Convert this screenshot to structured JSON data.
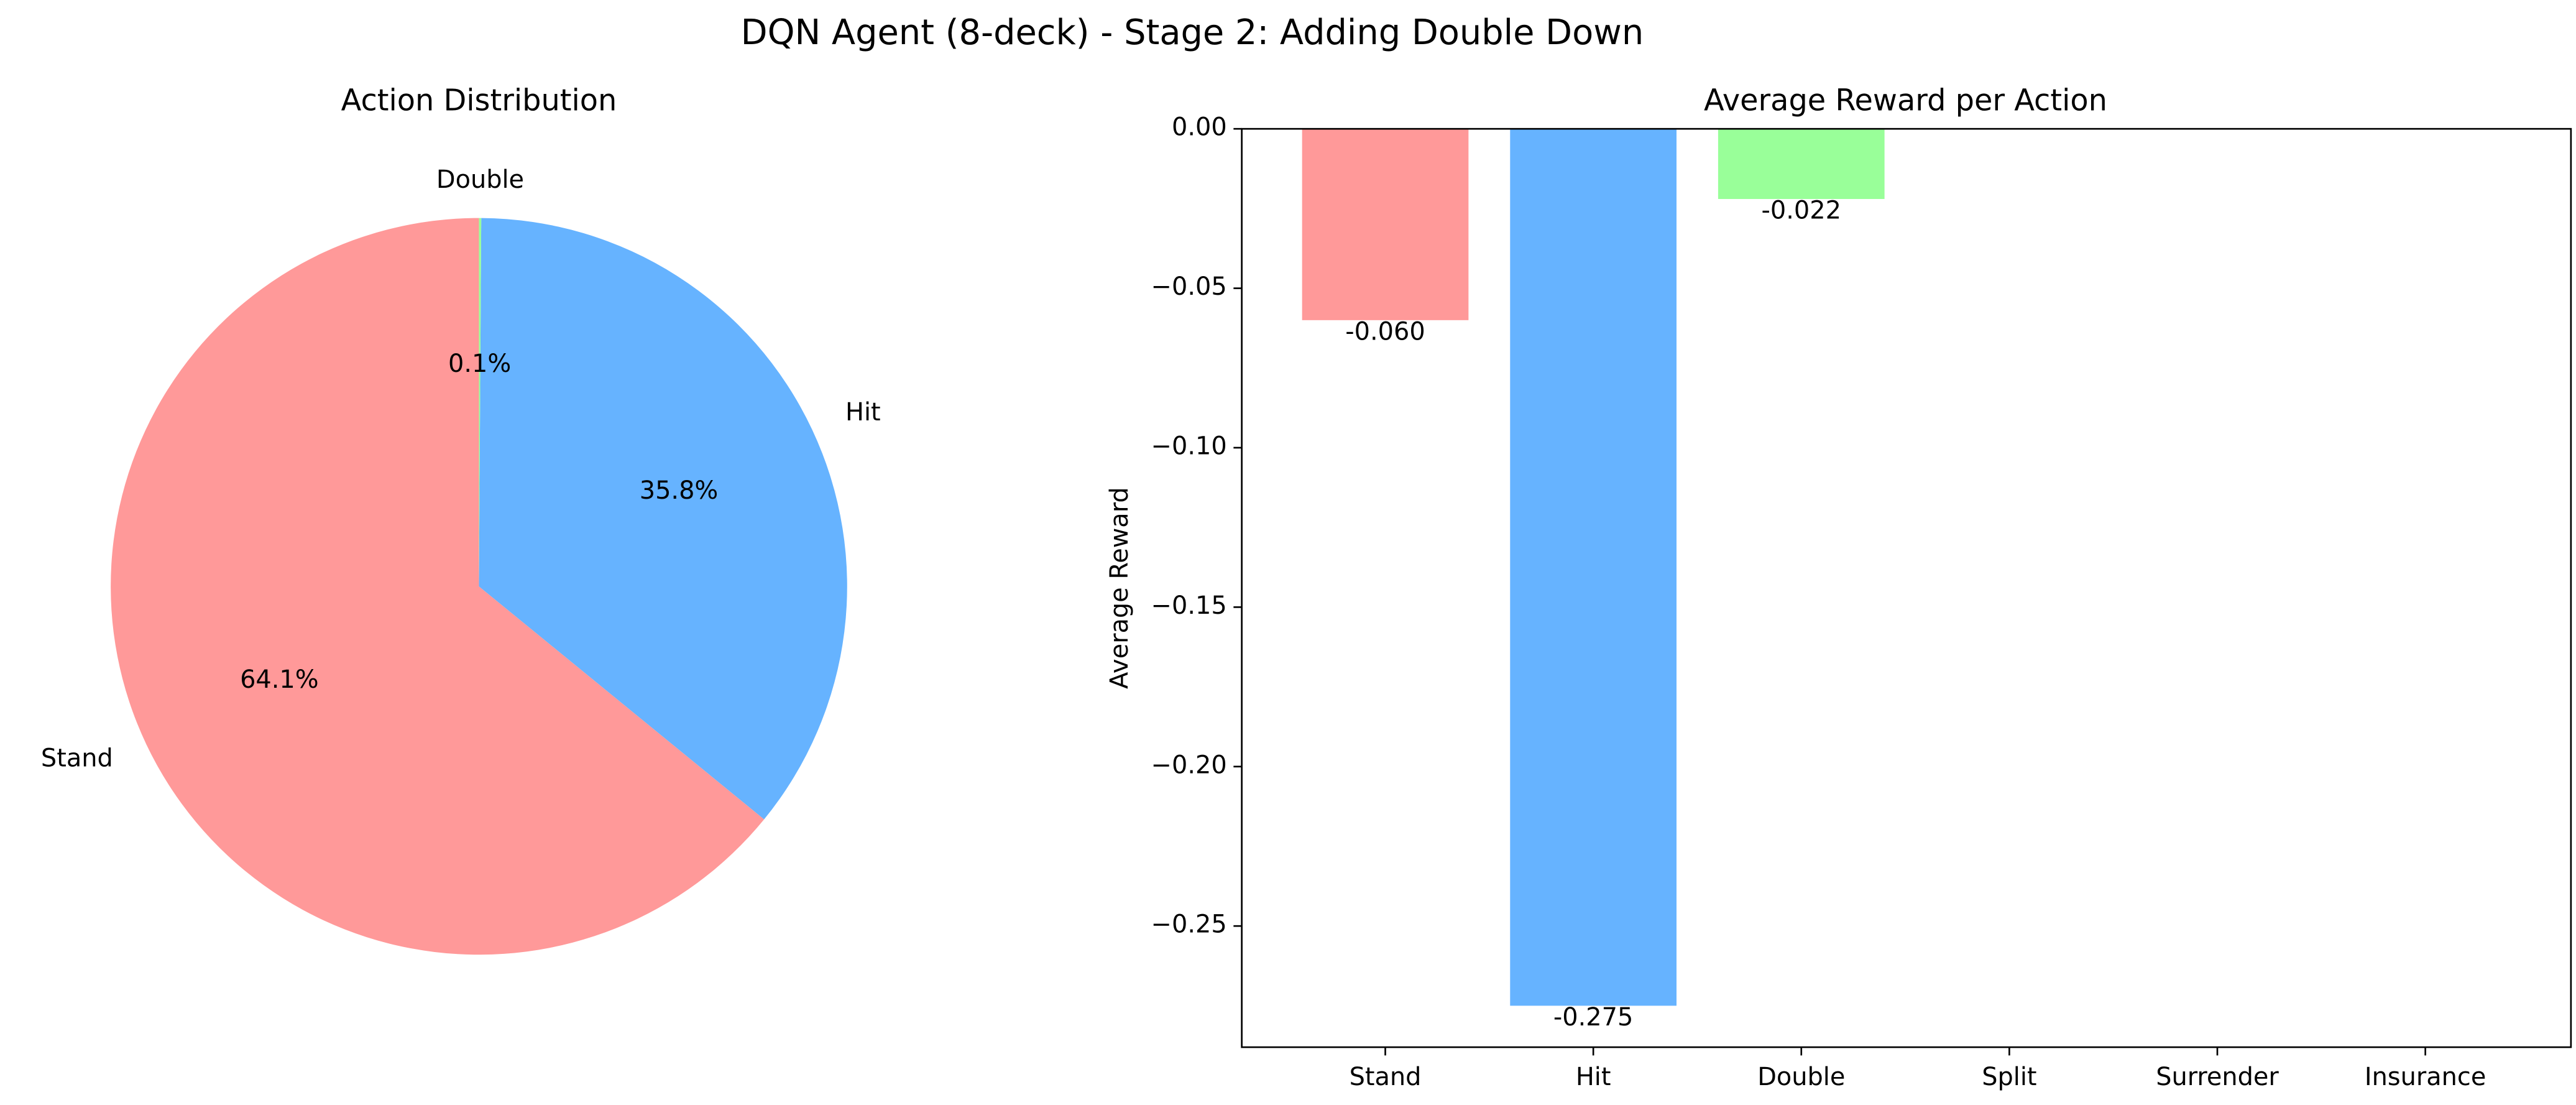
{
  "title": "DQN Agent (8-deck) - Stage 2: Adding Double Down",
  "chart_data": [
    {
      "type": "pie",
      "title": "Action Distribution",
      "categories": [
        "Stand",
        "Hit",
        "Double"
      ],
      "values": [
        64.1,
        35.8,
        0.1
      ],
      "value_labels": [
        "64.1%",
        "35.8%",
        "0.1%"
      ],
      "colors": [
        "#ff9999",
        "#66b3ff",
        "#99ff99"
      ]
    },
    {
      "type": "bar",
      "title": "Average Reward per Action",
      "ylabel": "Average Reward",
      "categories": [
        "Stand",
        "Hit",
        "Double",
        "Split",
        "Surrender",
        "Insurance"
      ],
      "values": [
        -0.06,
        -0.275,
        -0.022,
        null,
        null,
        null
      ],
      "value_labels": [
        "-0.060",
        "-0.275",
        "-0.022",
        null,
        null,
        null
      ],
      "colors": [
        "#ff9999",
        "#66b3ff",
        "#99ff99",
        null,
        null,
        null
      ],
      "ylim": [
        -0.288,
        0
      ],
      "yticks": [
        {
          "value": -0.25,
          "label": "−0.25"
        },
        {
          "value": -0.2,
          "label": "−0.20"
        },
        {
          "value": -0.15,
          "label": "−0.15"
        },
        {
          "value": -0.1,
          "label": "−0.10"
        },
        {
          "value": -0.05,
          "label": "−0.05"
        },
        {
          "value": 0,
          "label": "0.00"
        }
      ]
    }
  ]
}
